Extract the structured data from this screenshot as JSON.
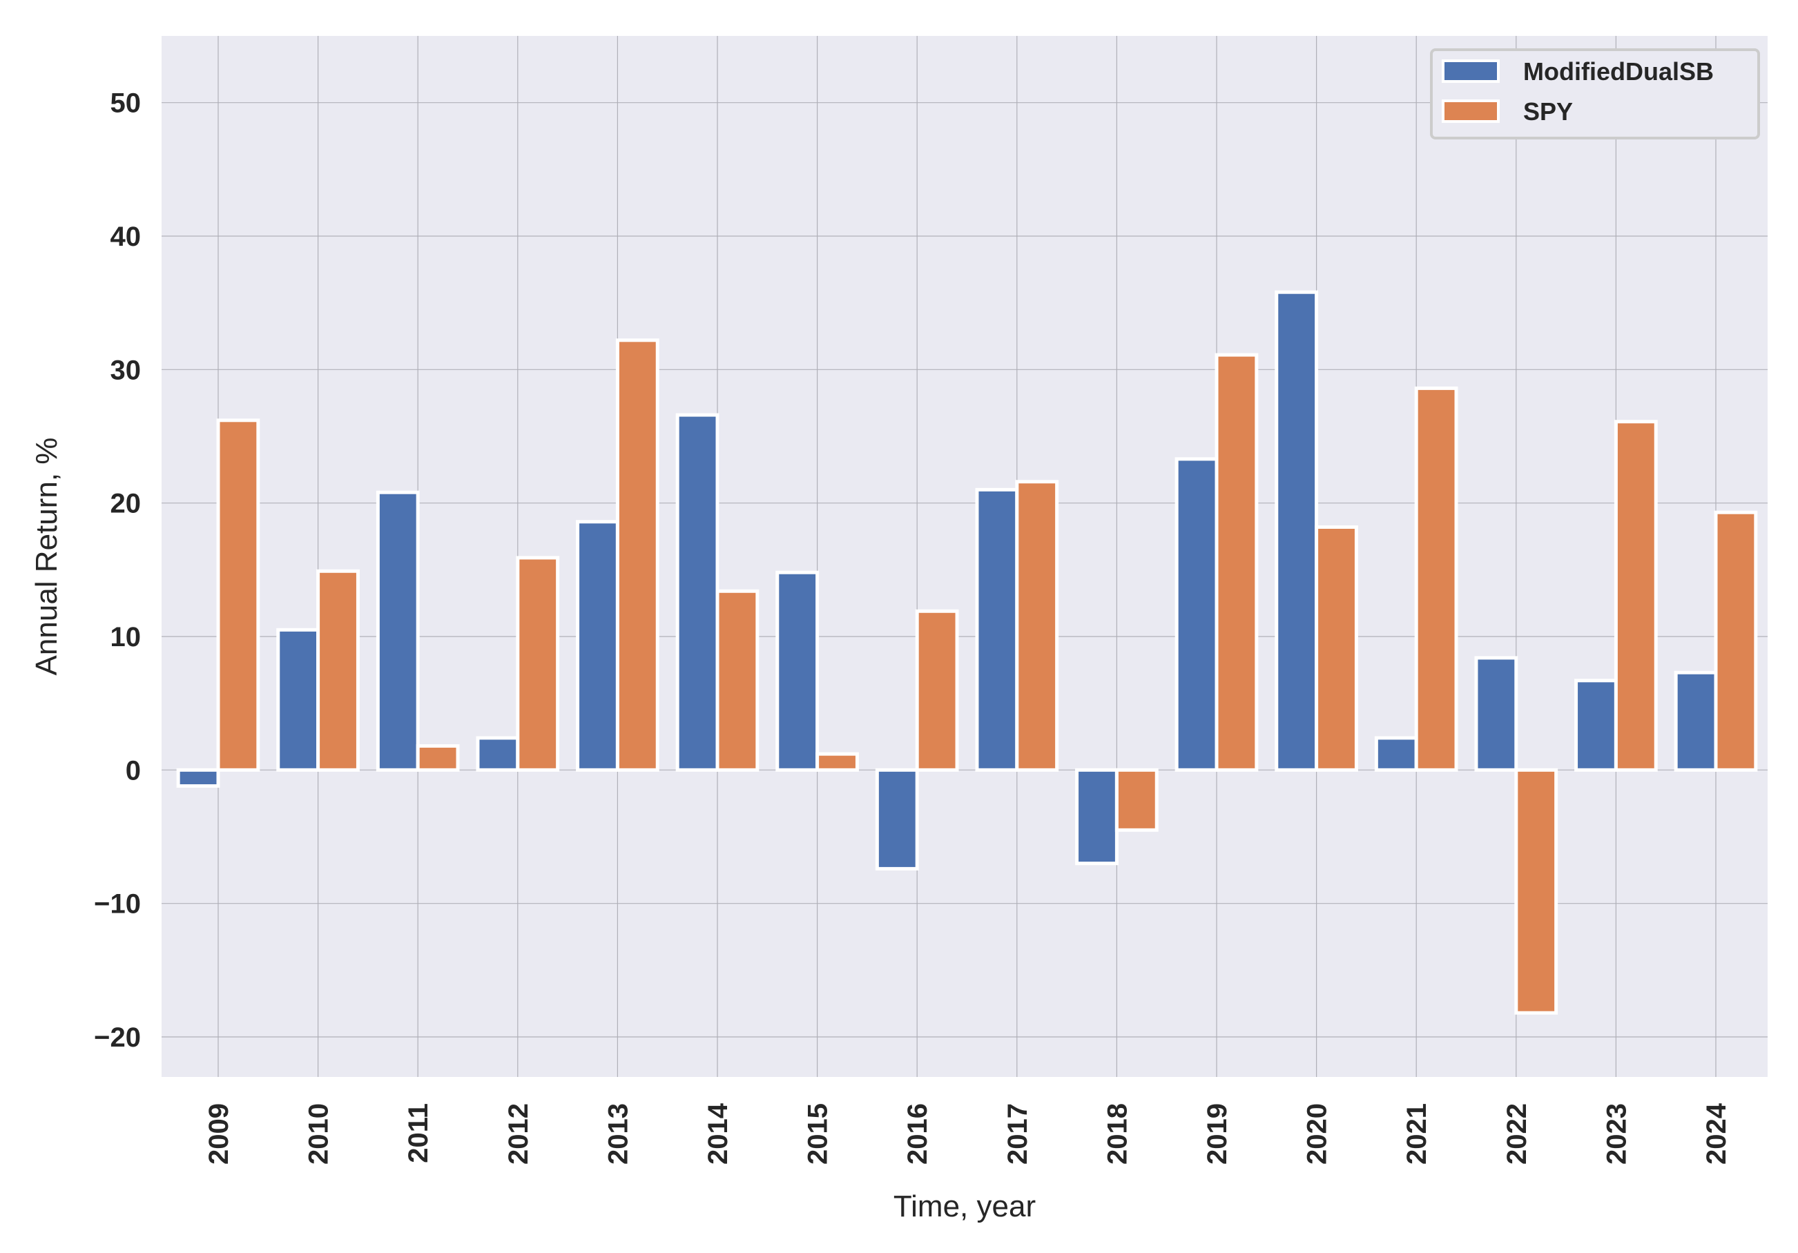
{
  "chart_data": {
    "type": "bar",
    "xlabel": "Time, year",
    "ylabel": "Annual Return, %",
    "ylim": [
      -23,
      55
    ],
    "yticks": [
      -20,
      -10,
      0,
      10,
      20,
      30,
      40,
      50
    ],
    "ytick_labels": [
      "−20",
      "−10",
      "0",
      "10",
      "20",
      "30",
      "40",
      "50"
    ],
    "grid": true,
    "legend_position": "top-right",
    "categories": [
      "2009",
      "2010",
      "2011",
      "2012",
      "2013",
      "2014",
      "2015",
      "2016",
      "2017",
      "2018",
      "2019",
      "2020",
      "2021",
      "2022",
      "2023",
      "2024"
    ],
    "series": [
      {
        "name": "ModifiedDualSB",
        "color": "#4c72b0",
        "values": [
          -1.2,
          10.5,
          20.8,
          2.4,
          18.6,
          26.6,
          14.8,
          -7.4,
          21.0,
          -7.0,
          23.3,
          35.8,
          2.4,
          8.4,
          6.7,
          7.3
        ]
      },
      {
        "name": "SPY",
        "color": "#dd8452",
        "values": [
          26.2,
          14.9,
          1.8,
          15.9,
          32.2,
          13.4,
          1.2,
          11.9,
          21.6,
          -4.5,
          31.1,
          18.2,
          28.6,
          -18.2,
          26.1,
          19.3
        ]
      }
    ],
    "colors": {
      "plot_background": "#eaeaf2",
      "grid": "#b0b0b8",
      "bar_edge": "#ffffff"
    }
  }
}
